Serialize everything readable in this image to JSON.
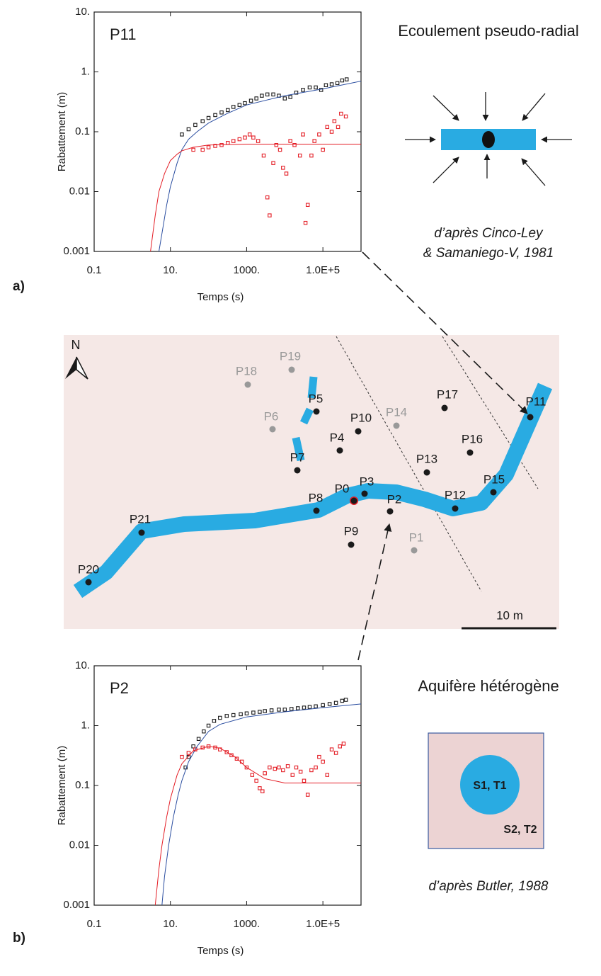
{
  "chart_data": [
    {
      "type": "scatter",
      "title": "P11",
      "xlabel": "Temps (s)",
      "ylabel": "Rabattement (m)",
      "xscale": "log",
      "yscale": "log",
      "xlim": [
        0.1,
        1000000
      ],
      "ylim": [
        0.001,
        10
      ],
      "xticks": [
        0.1,
        {
          "value": 10,
          "label": "10."
        },
        {
          "value": 1000,
          "label": "1000."
        },
        {
          "value": 100000,
          "label": "1.0E+5"
        }
      ],
      "yticks": [
        {
          "value": 10,
          "label": "10."
        },
        {
          "value": 1,
          "label": "1."
        },
        0.1,
        0.01,
        0.001
      ],
      "series": [
        {
          "type": "scatter",
          "color": "#1a1a1a",
          "x": [
            20,
            30,
            45,
            70,
            100,
            150,
            220,
            320,
            450,
            650,
            900,
            1300,
            1800,
            2500,
            3500,
            5000,
            7000,
            10000,
            14000,
            20000,
            30000,
            45000,
            65000,
            90000,
            120000,
            170000,
            240000,
            320000,
            420000
          ],
          "values": [
            0.09,
            0.11,
            0.13,
            0.15,
            0.17,
            0.19,
            0.21,
            0.23,
            0.26,
            0.28,
            0.3,
            0.33,
            0.36,
            0.4,
            0.42,
            0.42,
            0.4,
            0.36,
            0.38,
            0.45,
            0.5,
            0.55,
            0.55,
            0.5,
            0.6,
            0.62,
            0.65,
            0.72,
            0.75
          ]
        },
        {
          "type": "scatter",
          "color": "#e41e26",
          "x": [
            40,
            70,
            100,
            150,
            220,
            320,
            450,
            650,
            900,
            1200,
            1500,
            2000,
            2800,
            3500,
            4000,
            5000,
            6000,
            7500,
            9000,
            11000,
            14000,
            18000,
            25000,
            30000,
            35000,
            40000,
            50000,
            60000,
            80000,
            100000,
            130000,
            170000,
            200000,
            250000,
            300000,
            400000
          ],
          "values": [
            0.05,
            0.05,
            0.055,
            0.058,
            0.06,
            0.065,
            0.07,
            0.075,
            0.08,
            0.09,
            0.08,
            0.07,
            0.04,
            0.008,
            0.004,
            0.03,
            0.06,
            0.05,
            0.025,
            0.02,
            0.07,
            0.06,
            0.04,
            0.09,
            0.003,
            0.006,
            0.04,
            0.07,
            0.09,
            0.05,
            0.12,
            0.1,
            0.15,
            0.12,
            0.2,
            0.18
          ]
        },
        {
          "type": "line",
          "color": "#2b4ea0",
          "x": [
            5,
            6,
            8,
            10,
            15,
            20,
            30,
            50,
            100,
            300,
            1000,
            10000,
            100000,
            1000000
          ],
          "values": [
            0.001,
            0.002,
            0.006,
            0.012,
            0.03,
            0.05,
            0.075,
            0.1,
            0.14,
            0.2,
            0.28,
            0.4,
            0.52,
            0.7
          ]
        },
        {
          "type": "line",
          "color": "#e41e26",
          "x": [
            3,
            4,
            5,
            7,
            10,
            15,
            20,
            40,
            100,
            1000,
            10000,
            1000000
          ],
          "values": [
            0.001,
            0.004,
            0.01,
            0.02,
            0.033,
            0.042,
            0.048,
            0.055,
            0.06,
            0.062,
            0.062,
            0.062
          ]
        }
      ]
    },
    {
      "type": "scatter",
      "title": "P2",
      "xlabel": "Temps (s)",
      "ylabel": "Rabattement (m)",
      "xscale": "log",
      "yscale": "log",
      "xlim": [
        0.1,
        1000000
      ],
      "ylim": [
        0.001,
        10
      ],
      "xticks": [
        0.1,
        {
          "value": 10,
          "label": "10."
        },
        {
          "value": 1000,
          "label": "1000."
        },
        {
          "value": 100000,
          "label": "1.0E+5"
        }
      ],
      "yticks": [
        {
          "value": 10,
          "label": "10."
        },
        {
          "value": 1,
          "label": "1."
        },
        0.1,
        0.01,
        0.001
      ],
      "series": [
        {
          "type": "scatter",
          "color": "#1a1a1a",
          "x": [
            25,
            30,
            40,
            55,
            75,
            100,
            140,
            200,
            300,
            450,
            700,
            1000,
            1500,
            2200,
            3000,
            4500,
            7000,
            10000,
            15000,
            22000,
            32000,
            45000,
            65000,
            100000,
            150000,
            220000,
            320000,
            400000
          ],
          "values": [
            0.2,
            0.3,
            0.45,
            0.6,
            0.8,
            1.0,
            1.2,
            1.35,
            1.45,
            1.5,
            1.55,
            1.6,
            1.65,
            1.7,
            1.75,
            1.8,
            1.85,
            1.85,
            1.9,
            1.95,
            2.0,
            2.05,
            2.1,
            2.2,
            2.3,
            2.4,
            2.6,
            2.7
          ]
        },
        {
          "type": "scatter",
          "color": "#e41e26",
          "x": [
            20,
            30,
            45,
            70,
            100,
            150,
            200,
            300,
            400,
            550,
            750,
            1000,
            1400,
            1800,
            2200,
            2600,
            3000,
            4000,
            5500,
            7000,
            9000,
            12000,
            16000,
            20000,
            26000,
            32000,
            40000,
            50000,
            65000,
            80000,
            100000,
            130000,
            170000,
            220000,
            280000,
            350000
          ],
          "values": [
            0.3,
            0.35,
            0.4,
            0.43,
            0.45,
            0.43,
            0.4,
            0.36,
            0.32,
            0.28,
            0.25,
            0.2,
            0.15,
            0.12,
            0.09,
            0.08,
            0.16,
            0.2,
            0.19,
            0.2,
            0.18,
            0.21,
            0.15,
            0.2,
            0.17,
            0.12,
            0.07,
            0.18,
            0.2,
            0.3,
            0.25,
            0.15,
            0.4,
            0.35,
            0.45,
            0.5
          ]
        },
        {
          "type": "line",
          "color": "#2b4ea0",
          "x": [
            6,
            7,
            9,
            12,
            16,
            20,
            30,
            50,
            100,
            200,
            1000,
            10000,
            100000,
            1000000
          ],
          "values": [
            0.001,
            0.003,
            0.01,
            0.03,
            0.07,
            0.12,
            0.25,
            0.45,
            0.8,
            1.05,
            1.4,
            1.7,
            2.0,
            2.3
          ]
        },
        {
          "type": "line",
          "color": "#e41e26",
          "x": [
            4,
            5,
            6,
            8,
            10,
            15,
            20,
            40,
            100,
            200,
            500,
            1000,
            3000,
            10000,
            100000,
            1000000
          ],
          "values": [
            0.001,
            0.004,
            0.01,
            0.03,
            0.06,
            0.15,
            0.23,
            0.38,
            0.45,
            0.42,
            0.3,
            0.2,
            0.13,
            0.11,
            0.11,
            0.11
          ]
        }
      ]
    }
  ],
  "panel_labels": [
    "a)",
    "b)"
  ],
  "flow_diagram": {
    "title": "Ecoulement pseudo-radial",
    "credit": [
      "d’après Cinco-Ley",
      "& Samaniego-V, 1981"
    ]
  },
  "map": {
    "north": "N",
    "scale": "10 m",
    "wells": [
      "P0",
      "P1",
      "P2",
      "P3",
      "P4",
      "P5",
      "P6",
      "P7",
      "P8",
      "P9",
      "P10",
      "P11",
      "P12",
      "P13",
      "P14",
      "P15",
      "P16",
      "P17",
      "P18",
      "P19",
      "P20",
      "P21"
    ]
  },
  "heterogeneous_diagram": {
    "title": "Aquifère hétérogène",
    "inner": "S1, T1",
    "outer": "S2, T2",
    "credit": "d’après Butler, 1988"
  }
}
